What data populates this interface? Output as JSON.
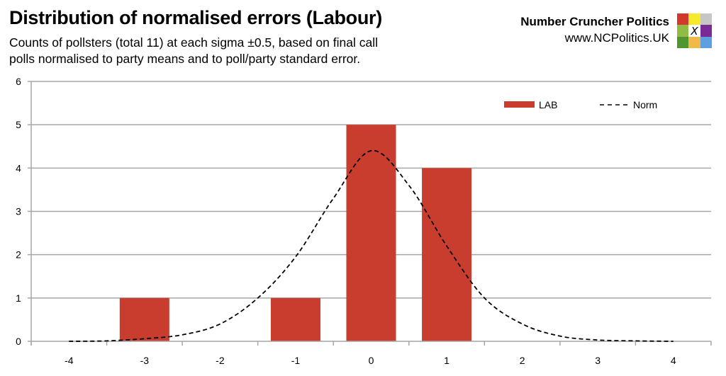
{
  "header": {
    "title": "Distribution of normalised errors (Labour)",
    "subtitle_line1": "Counts of pollsters (total 11) at each sigma ±0.5, based on final call",
    "subtitle_line2": "polls normalised to party means and to poll/party standard error."
  },
  "brand": {
    "name": "Number Cruncher Politics",
    "url": "www.NCPolitics.UK",
    "logo_icon": "ncp-color-grid-logo",
    "logo_colors": [
      "#d0392c",
      "#f7ea2a",
      "#c6c6c6",
      "#8fbc45",
      "#ffffff",
      "#7a2b93",
      "#4f962e",
      "#f1b84a",
      "#5e9fe0"
    ],
    "logo_center_glyph": "X"
  },
  "colors": {
    "bar": "#c93d2e",
    "norm_line": "#000000",
    "grid": "#a6a6a6"
  },
  "legend": {
    "items": [
      {
        "label": "LAB",
        "type": "bar"
      },
      {
        "label": "Norm",
        "type": "dashed-line"
      }
    ]
  },
  "chart_data": {
    "type": "bar",
    "title": "Distribution of normalised errors (Labour)",
    "subtitle": "Counts of pollsters (total 11) at each sigma ±0.5, based on final call polls normalised to party means and to poll/party standard error.",
    "xlabel": "",
    "ylabel": "",
    "categories": [
      "-4",
      "-3",
      "-2",
      "-1",
      "0",
      "1",
      "2",
      "3",
      "4"
    ],
    "ylim": [
      0,
      6
    ],
    "yticks": [
      0,
      1,
      2,
      3,
      4,
      5,
      6
    ],
    "grid": true,
    "legend_position": "top-right inside plot",
    "series": [
      {
        "name": "LAB",
        "type": "bar",
        "values": [
          0,
          1,
          0,
          1,
          5,
          4,
          0,
          0,
          0
        ]
      },
      {
        "name": "Norm",
        "type": "line",
        "style": "dashed",
        "x": [
          -4,
          -3.5,
          -3,
          -2.5,
          -2,
          -1.5,
          -1,
          -0.5,
          0,
          0.5,
          1,
          1.5,
          2,
          2.5,
          3,
          3.5,
          4
        ],
        "values": [
          0.0,
          0.01,
          0.06,
          0.15,
          0.4,
          1.0,
          1.95,
          3.3,
          4.4,
          3.6,
          2.2,
          1.0,
          0.4,
          0.12,
          0.03,
          0.01,
          0.0
        ]
      }
    ]
  }
}
